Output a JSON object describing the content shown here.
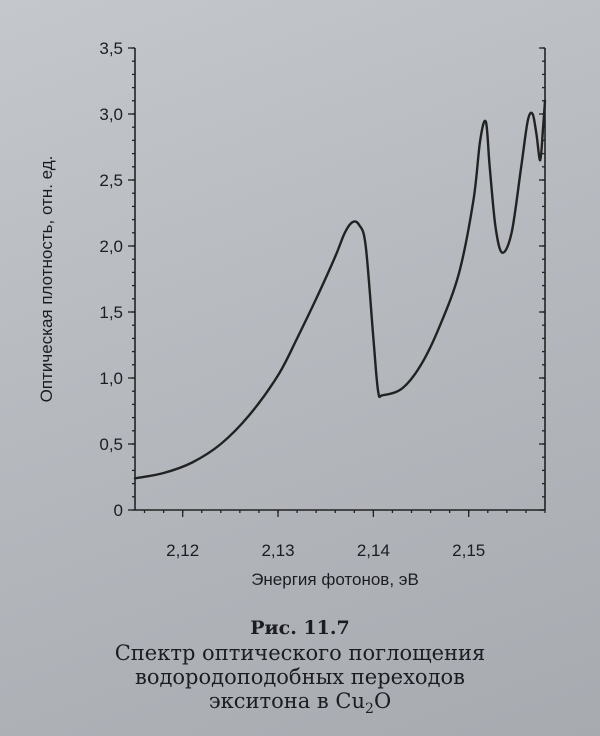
{
  "chart_data": {
    "type": "line",
    "xlabel": "Энергия фотонов, эВ",
    "ylabel": "Оптическая плотность, отн. ед.",
    "xlim": [
      2.115,
      2.158
    ],
    "ylim": [
      0,
      3.5
    ],
    "x_ticks": [
      "2,12",
      "2,13",
      "2,14",
      "2,15"
    ],
    "x_tick_values": [
      2.12,
      2.13,
      2.14,
      2.15
    ],
    "y_ticks": [
      "0",
      "0,5",
      "1,0",
      "1,5",
      "2,0",
      "2,5",
      "3,0",
      "3,5"
    ],
    "y_tick_values": [
      0,
      0.5,
      1.0,
      1.5,
      2.0,
      2.5,
      3.0,
      3.5
    ],
    "grid": false,
    "series": [
      {
        "x": [
          2.115,
          2.118,
          2.121,
          2.124,
          2.127,
          2.13,
          2.132,
          2.134,
          2.136,
          2.137,
          2.1378,
          2.1385,
          2.1392,
          2.14,
          2.1405,
          2.141,
          2.143,
          2.145,
          2.147,
          2.149,
          2.1505,
          2.1512,
          2.1518,
          2.1522,
          2.1528,
          2.1535,
          2.1545,
          2.1555,
          2.1562,
          2.1567,
          2.1571,
          2.1575,
          2.1578,
          2.158
        ],
        "y": [
          0.24,
          0.28,
          0.36,
          0.5,
          0.72,
          1.02,
          1.3,
          1.6,
          1.92,
          2.1,
          2.18,
          2.16,
          2.0,
          1.3,
          0.9,
          0.87,
          0.92,
          1.1,
          1.4,
          1.8,
          2.35,
          2.8,
          2.94,
          2.6,
          2.15,
          1.95,
          2.1,
          2.6,
          2.95,
          3.0,
          2.85,
          2.65,
          2.9,
          3.1
        ]
      }
    ]
  },
  "caption": {
    "fig_label": "Рис. 11.7",
    "line1": "Спектр оптического поглощения",
    "line2": "водородоподобных переходов",
    "line3_prefix": "экситона в Cu",
    "line3_sub": "2",
    "line3_suffix": "O"
  }
}
